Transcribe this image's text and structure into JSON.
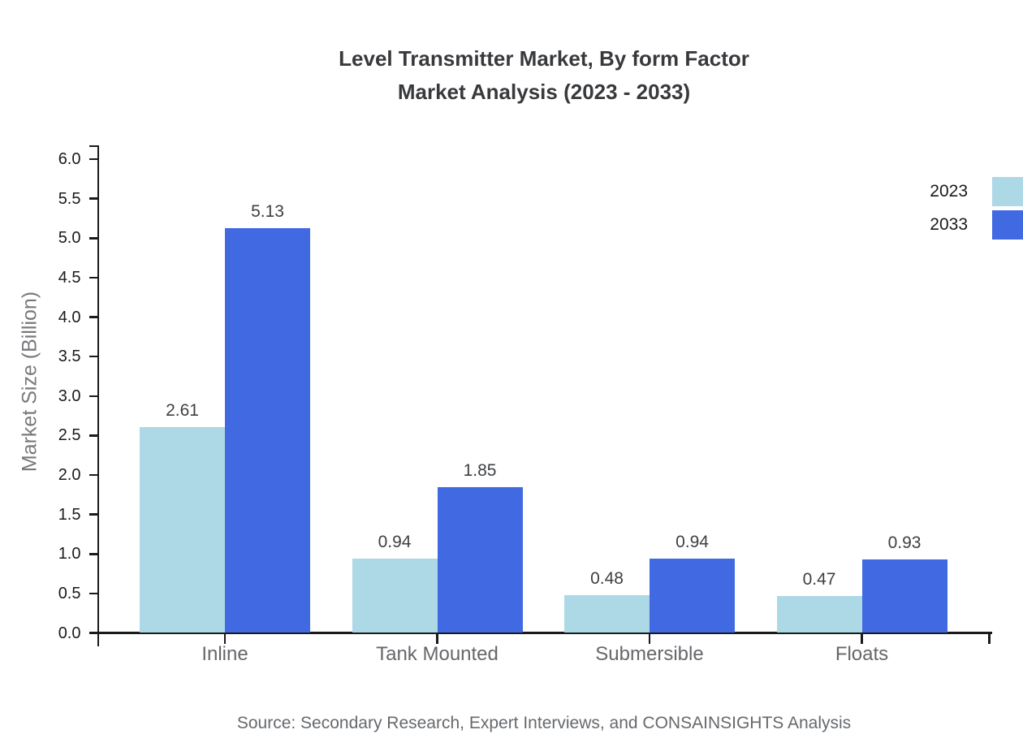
{
  "title": {
    "line1": "Level Transmitter Market, By form Factor",
    "line2": "Market Analysis (2023 - 2033)"
  },
  "source": "Source: Secondary Research, Expert Interviews, and CONSAINSIGHTS Analysis",
  "chart_data": {
    "type": "bar",
    "title": "Level Transmitter Market, By form Factor Market Analysis (2023 - 2033)",
    "categories": [
      "Inline",
      "Tank Mounted",
      "Submersible",
      "Floats"
    ],
    "series": [
      {
        "name": "2023",
        "color": "#ADD8E6",
        "values": [
          2.61,
          0.94,
          0.48,
          0.47
        ]
      },
      {
        "name": "2033",
        "color": "#4169E1",
        "values": [
          5.13,
          1.85,
          0.94,
          0.93
        ]
      }
    ],
    "xlabel": "",
    "ylabel": "Market Size (Billion)",
    "ylim": [
      0.0,
      6.0
    ],
    "yticks": [
      "0.0",
      "0.5",
      "1.0",
      "1.5",
      "2.0",
      "2.5",
      "3.0",
      "3.5",
      "4.0",
      "4.5",
      "5.0",
      "5.5",
      "6.0"
    ],
    "grid": false,
    "value_labels": true,
    "legend_position": "top-right"
  }
}
